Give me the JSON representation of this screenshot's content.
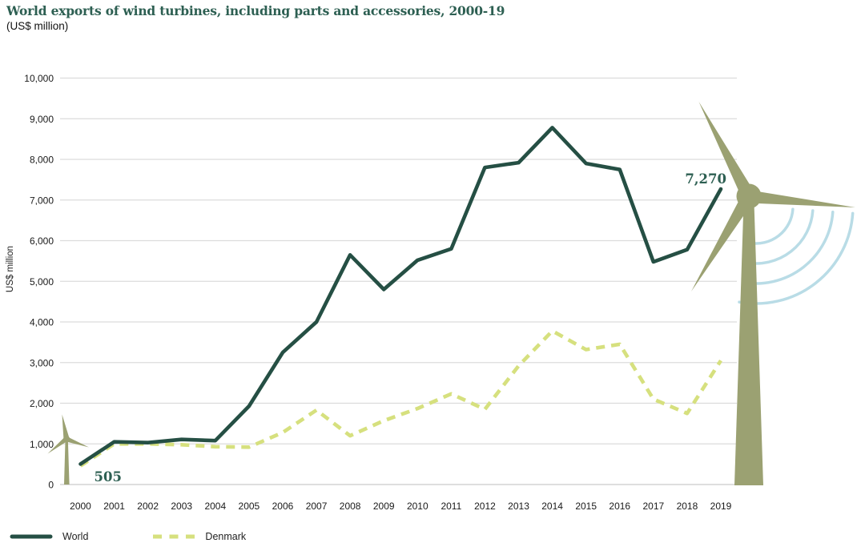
{
  "header": {
    "title": "World exports of wind turbines, including parts and accessories, 2000-19",
    "subtitle": "(US$ million)"
  },
  "axes": {
    "y_label": "US$ million",
    "y_tick_labels": [
      "0",
      "1,000",
      "2,000",
      "3,000",
      "4,000",
      "5,000",
      "6,000",
      "7,000",
      "8,000",
      "9,000",
      "10,000"
    ],
    "x_tick_labels": [
      "2000",
      "2001",
      "2002",
      "2003",
      "2004",
      "2005",
      "2006",
      "2007",
      "2008",
      "2009",
      "2010",
      "2011",
      "2012",
      "2013",
      "2014",
      "2015",
      "2016",
      "2017",
      "2018",
      "2019"
    ]
  },
  "legend": {
    "items": [
      {
        "label": "World"
      },
      {
        "label": "Denmark"
      }
    ]
  },
  "colors": {
    "title_teal": "#2d5f52",
    "world_line": "#254f44",
    "denmark_line": "#d6e07e",
    "turbine_olive": "#9ba172",
    "signal_arc_blue": "#b9dce6",
    "gridline": "#dcdcdc",
    "axis_line": "#c9c9c9",
    "axis_text": "#1a1a1a"
  },
  "decorations": {
    "small_wind_turbine": "olive wind turbine at year 2000 beside the 505 start point",
    "large_wind_turbine": "large olive wind turbine on right side with hub near 2019 endpoint",
    "signal_arcs": 4
  },
  "chart_data": {
    "type": "line",
    "title": "World exports of wind turbines, including parts and accessories, 2000-19",
    "subtitle": "(US$ million)",
    "xlabel": "",
    "ylabel": "US$ million",
    "ylim": [
      0,
      10000
    ],
    "y_tick_step": 1000,
    "y_tick_labels": [
      "0",
      "1,000",
      "2,000",
      "3,000",
      "4,000",
      "5,000",
      "6,000",
      "7,000",
      "8,000",
      "9,000",
      "10,000"
    ],
    "grid": true,
    "legend_position": "bottom-left",
    "categories": [
      "2000",
      "2001",
      "2002",
      "2003",
      "2004",
      "2005",
      "2006",
      "2007",
      "2008",
      "2009",
      "2010",
      "2011",
      "2012",
      "2013",
      "2014",
      "2015",
      "2016",
      "2017",
      "2018",
      "2019"
    ],
    "series": [
      {
        "name": "World",
        "style": "solid",
        "color": "#254f44",
        "values": [
          505,
          1050,
          1030,
          1110,
          1080,
          1930,
          3250,
          4000,
          5650,
          4800,
          5520,
          5800,
          7800,
          7920,
          8780,
          7900,
          7750,
          5480,
          5780,
          7270
        ]
      },
      {
        "name": "Denmark",
        "style": "dashed",
        "color": "#d6e07e",
        "values": [
          460,
          1000,
          1000,
          980,
          930,
          920,
          1280,
          1830,
          1200,
          1570,
          1870,
          2230,
          1850,
          2920,
          3780,
          3320,
          3450,
          2100,
          1750,
          3050
        ]
      }
    ],
    "annotations": [
      {
        "text": "505",
        "series": "World",
        "category": "2000",
        "position": "below-right"
      },
      {
        "text": "7,270",
        "series": "World",
        "category": "2019",
        "position": "above-left"
      }
    ]
  }
}
